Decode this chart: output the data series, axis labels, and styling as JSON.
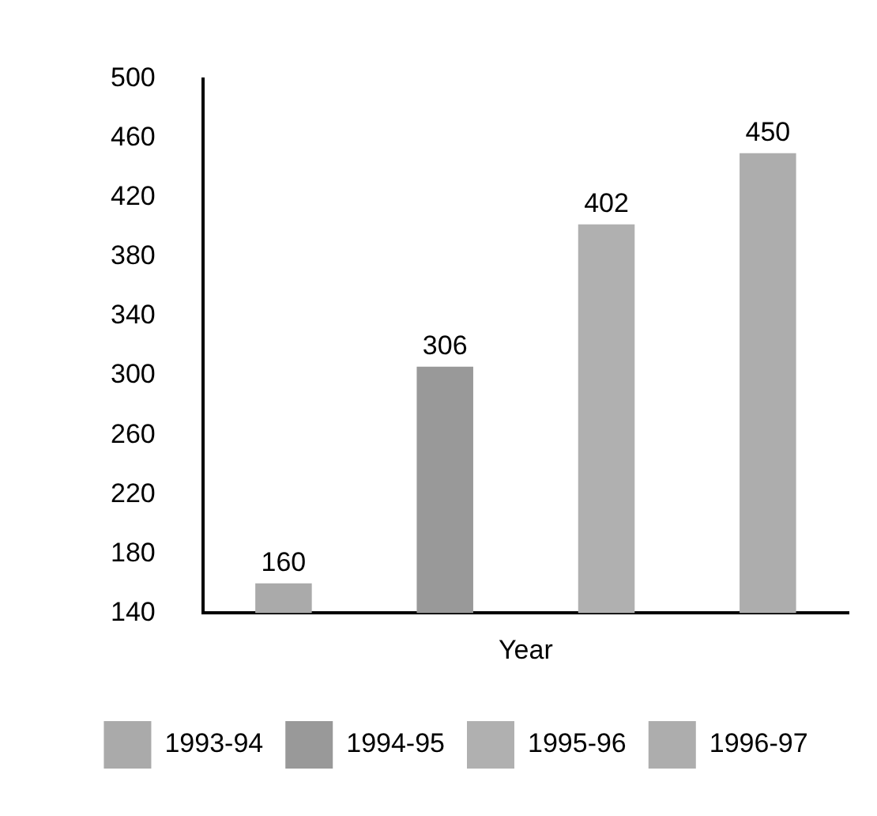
{
  "chart_data": {
    "type": "bar",
    "xlabel": "Year",
    "categories": [
      null,
      null,
      null,
      null
    ],
    "series": [
      {
        "name": "1993-94",
        "color": "#aaaaaa",
        "values": [
          160,
          null,
          null,
          null
        ]
      },
      {
        "name": "1994-95",
        "color": "#999999",
        "values": [
          null,
          306,
          null,
          null
        ]
      },
      {
        "name": "1995-96",
        "color": "#b0b0b0",
        "values": [
          null,
          null,
          402,
          null
        ]
      },
      {
        "name": "1996-97",
        "color": "#adadad",
        "values": [
          null,
          null,
          null,
          450
        ]
      }
    ],
    "ylim": [
      140,
      500
    ],
    "yticks": [
      140,
      180,
      220,
      260,
      300,
      340,
      380,
      420,
      460,
      500
    ],
    "data_labels": true,
    "grid": false,
    "legend": "bottom",
    "tick_labels": "y"
  }
}
